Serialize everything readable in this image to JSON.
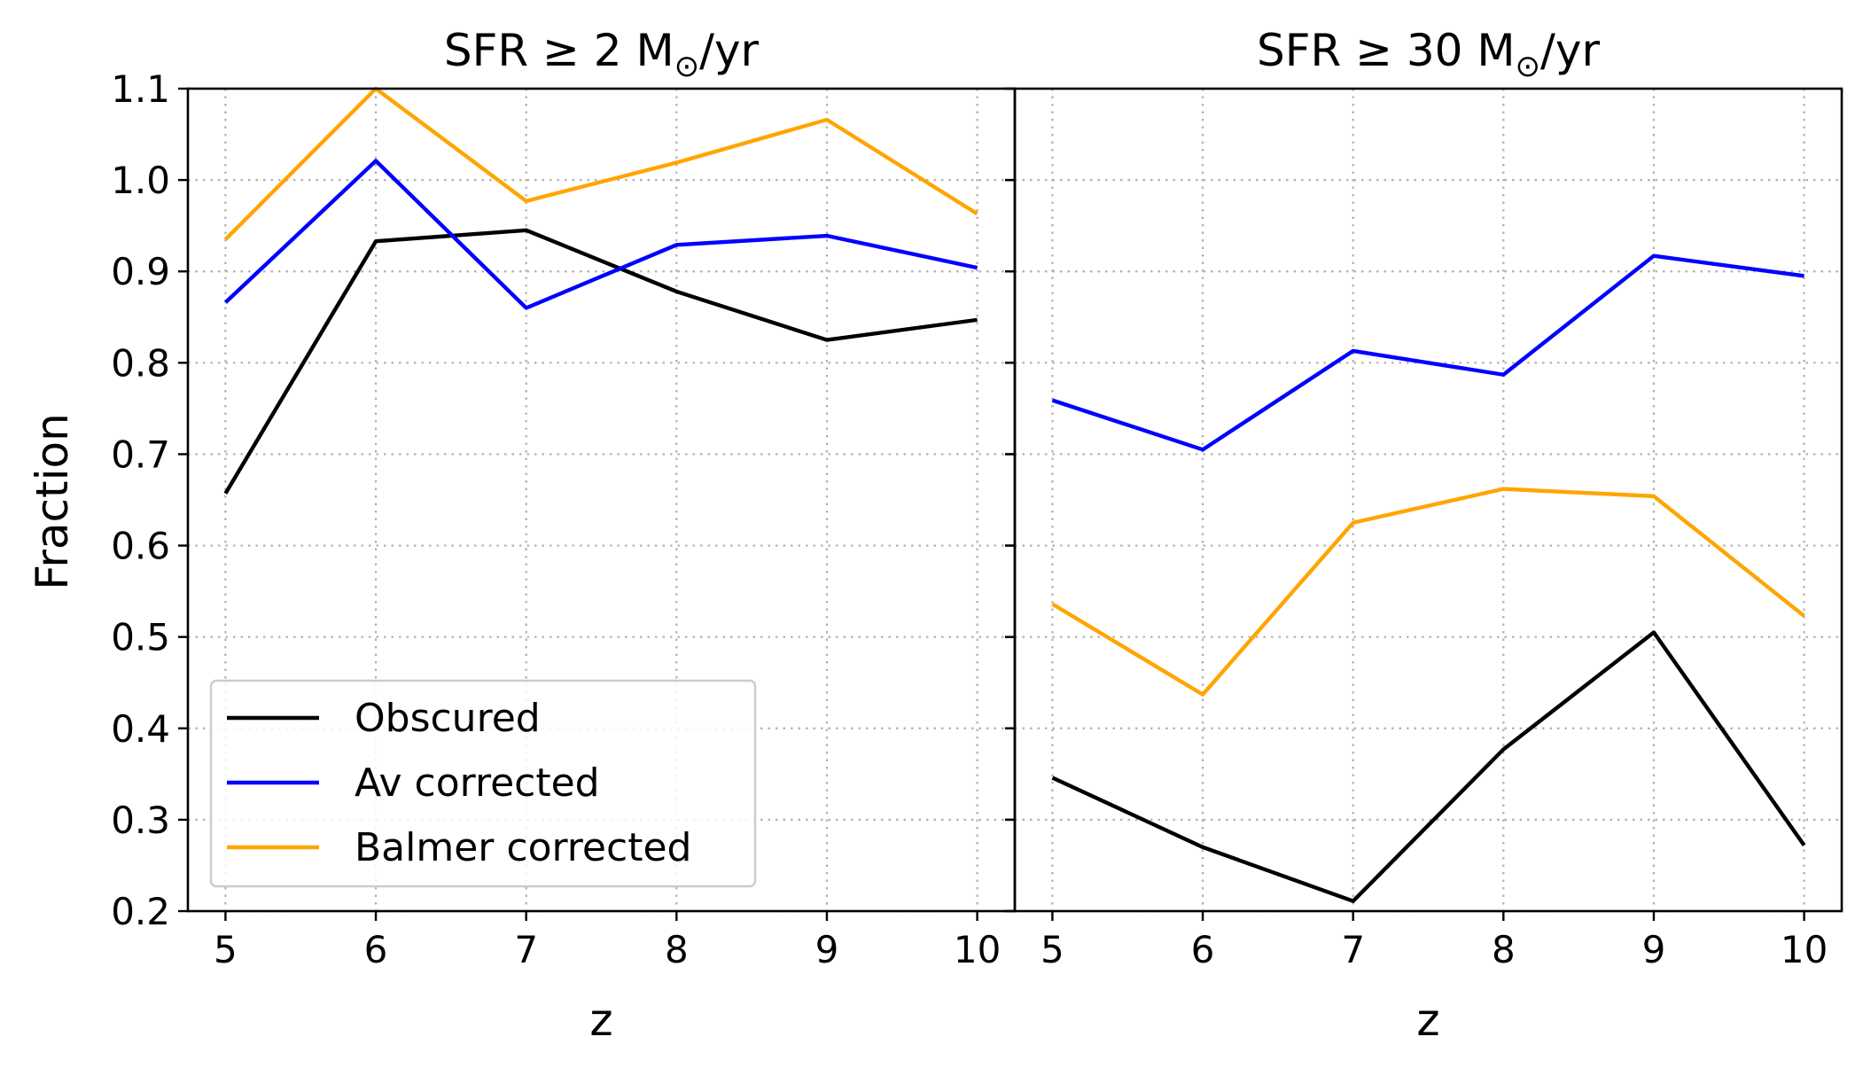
{
  "figure": {
    "ylabel": "Fraction",
    "legend": {
      "placement": "lower-left of left panel",
      "entries": [
        "Obscured",
        "Av corrected",
        "Balmer corrected"
      ]
    }
  },
  "chart_data": [
    {
      "type": "line",
      "title_text": "SFR  ≥  2 M",
      "title_sub": "⊙",
      "title_tail": "/yr",
      "xlabel": "z",
      "ylabel": "Fraction",
      "x": [
        5,
        6,
        7,
        8,
        9,
        10
      ],
      "xticks": [
        "5",
        "6",
        "7",
        "8",
        "9",
        "10"
      ],
      "xlim": [
        4.75,
        10.25
      ],
      "ylim": [
        0.2,
        1.1
      ],
      "yticks": [
        "0.2",
        "0.3",
        "0.4",
        "0.5",
        "0.6",
        "0.7",
        "0.8",
        "0.9",
        "1.0",
        "1.1"
      ],
      "grid": true,
      "legend": "lower-left",
      "series": [
        {
          "name": "Obscured",
          "color": "#000000",
          "values": [
            0.657,
            0.933,
            0.945,
            0.878,
            0.825,
            0.847
          ]
        },
        {
          "name": "Av corrected",
          "color": "#0000ff",
          "values": [
            0.866,
            1.021,
            0.86,
            0.929,
            0.939,
            0.904
          ]
        },
        {
          "name": "Balmer corrected",
          "color": "#ffa500",
          "values": [
            0.935,
            1.1,
            0.977,
            1.019,
            1.066,
            0.963
          ]
        }
      ]
    },
    {
      "type": "line",
      "title_text": "SFR  ≥  30 M",
      "title_sub": "⊙",
      "title_tail": "/yr",
      "xlabel": "z",
      "x": [
        5,
        6,
        7,
        8,
        9,
        10
      ],
      "xticks": [
        "5",
        "6",
        "7",
        "8",
        "9",
        "10"
      ],
      "xlim": [
        4.75,
        10.25
      ],
      "ylim": [
        0.2,
        1.1
      ],
      "grid": true,
      "series": [
        {
          "name": "Obscured",
          "color": "#000000",
          "values": [
            0.346,
            0.27,
            0.211,
            0.377,
            0.505,
            0.272
          ]
        },
        {
          "name": "Av corrected",
          "color": "#0000ff",
          "values": [
            0.759,
            0.705,
            0.813,
            0.787,
            0.917,
            0.895
          ]
        },
        {
          "name": "Balmer corrected",
          "color": "#ffa500",
          "values": [
            0.536,
            0.437,
            0.625,
            0.662,
            0.654,
            0.523
          ]
        }
      ]
    }
  ]
}
